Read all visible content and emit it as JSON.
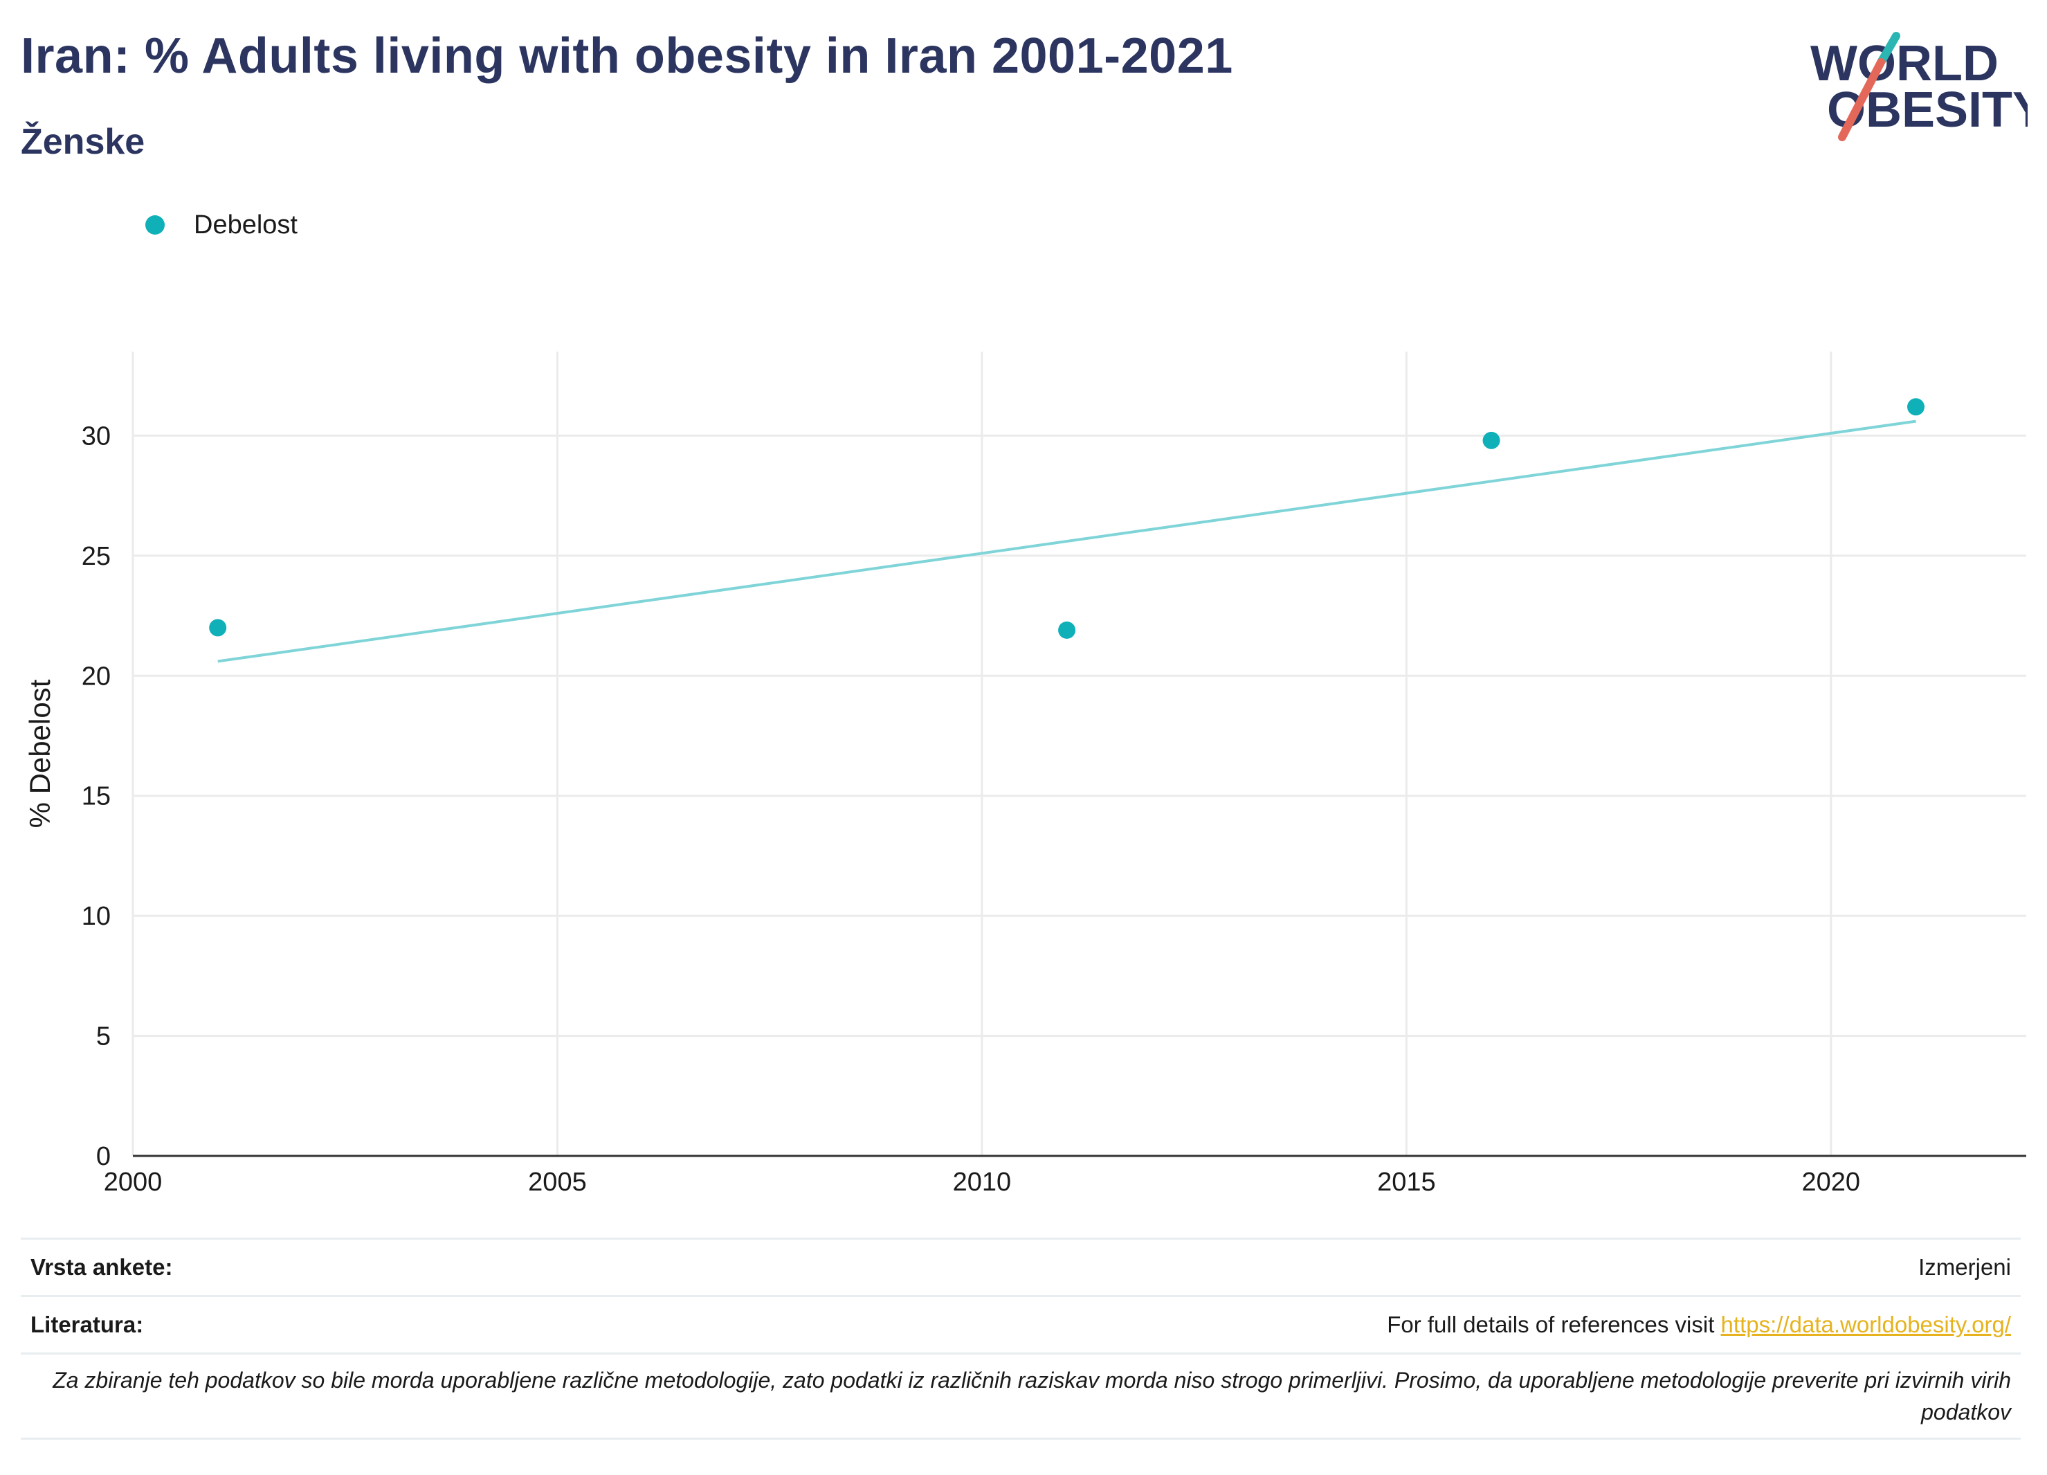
{
  "header": {
    "title": "Iran: % Adults living with obesity in Iran 2001-2021",
    "subtitle": "Ženske"
  },
  "logo": {
    "line1": "WORLD",
    "line2": "OBESITY",
    "accent_teal": "#2bb5b3",
    "accent_coral": "#e4685a",
    "text_color": "#2b3560"
  },
  "legend": {
    "label": "Debelost",
    "color": "#0fb0b8"
  },
  "chart_data": {
    "type": "scatter",
    "ylabel": "% Debelost",
    "xlabel": "",
    "xlim": [
      2000,
      2022.3
    ],
    "ylim": [
      0,
      33.5
    ],
    "x_ticks": [
      2000,
      2005,
      2010,
      2015,
      2020
    ],
    "y_ticks": [
      0,
      5,
      10,
      15,
      20,
      25,
      30
    ],
    "grid": true,
    "legend_position": "top-left",
    "series": [
      {
        "name": "Debelost",
        "color": "#0fb0b8",
        "x": [
          2001,
          2011,
          2016,
          2021
        ],
        "y": [
          22.0,
          21.9,
          29.8,
          31.2
        ]
      }
    ],
    "trendline": {
      "color": "#7fd4d8",
      "x": [
        2001,
        2021
      ],
      "y": [
        20.6,
        30.6
      ]
    }
  },
  "footer": {
    "survey_type_label": "Vrsta ankete:",
    "survey_type_value": "Izmerjeni",
    "references_label": "Literatura:",
    "references_text": "For full details of references visit ",
    "references_link": "https://data.worldobesity.org/",
    "disclaimer": "Za zbiranje teh podatkov so bile morda uporabljene različne metodologije, zato podatki iz različnih raziskav morda niso strogo primerljivi. Prosimo, da uporabljene metodologije preverite pri izvirnih virih podatkov"
  }
}
